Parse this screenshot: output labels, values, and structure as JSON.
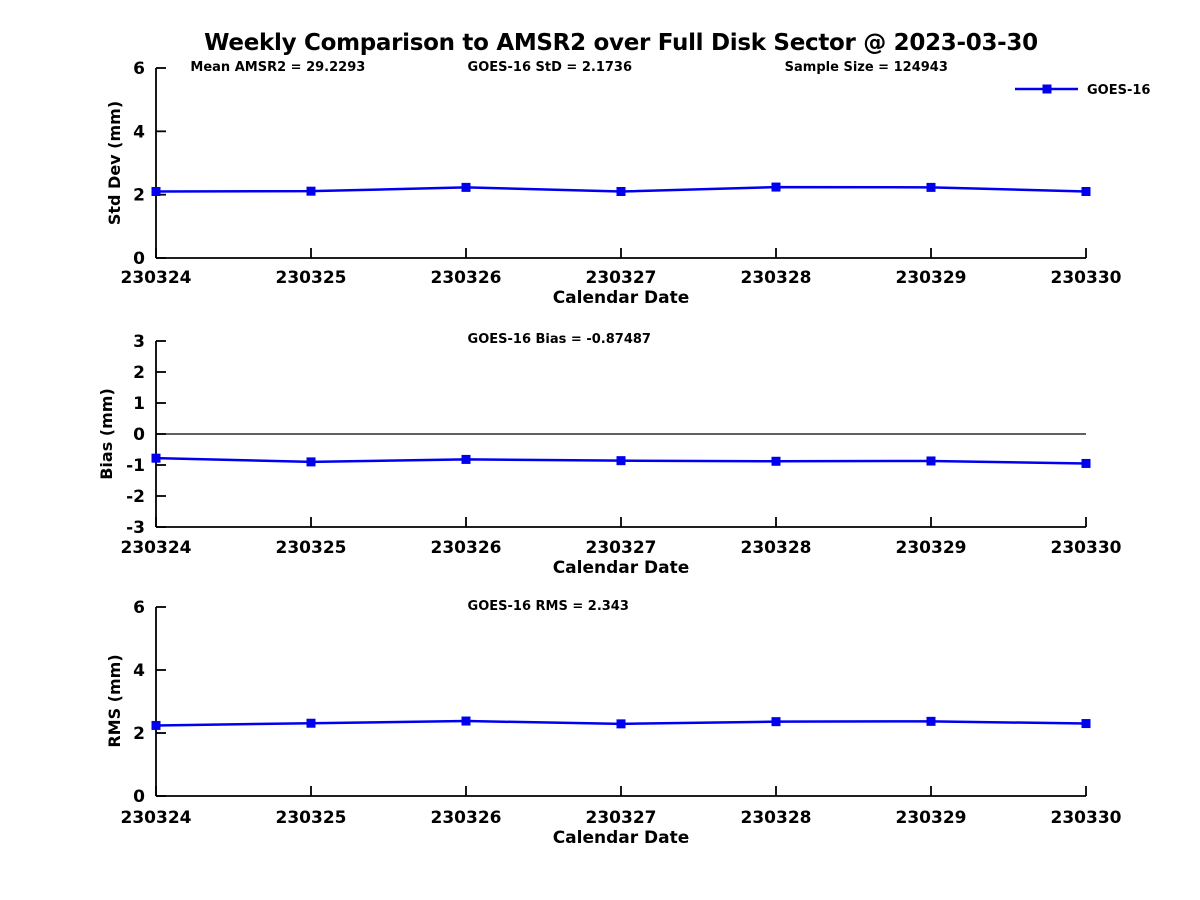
{
  "title": "Weekly Comparison to AMSR2 over Full Disk Sector @ 2023-03-30",
  "legend": {
    "label": "GOES-16"
  },
  "colors": {
    "line": "#0000EE",
    "marker": "#0000EE",
    "axis": "#000000",
    "text": "#000000",
    "background": "#FFFFFF"
  },
  "chart_data": [
    {
      "type": "line",
      "ylabel": "Std Dev (mm)",
      "xlabel": "Calendar Date",
      "ylim": [
        0,
        6
      ],
      "yticks": [
        0,
        2,
        4,
        6
      ],
      "categories": [
        "230324",
        "230325",
        "230326",
        "230327",
        "230328",
        "230329",
        "230330"
      ],
      "series": [
        {
          "name": "GOES-16",
          "values": [
            2.1,
            2.11,
            2.23,
            2.1,
            2.24,
            2.23,
            2.1
          ]
        }
      ],
      "annotations": [
        {
          "text": "Mean AMSR2 = 29.2293",
          "fx": 0.037
        },
        {
          "text": "GOES-16 StD = 2.1736",
          "fx": 0.335
        },
        {
          "text": "Sample Size = 124943",
          "fx": 0.676
        }
      ],
      "zero_line": false,
      "show_legend": true,
      "grid": false,
      "legend_position": "upper-right-outside"
    },
    {
      "type": "line",
      "ylabel": "Bias (mm)",
      "xlabel": "Calendar Date",
      "ylim": [
        -3,
        3
      ],
      "yticks": [
        -3,
        -2,
        -1,
        0,
        1,
        2,
        3
      ],
      "categories": [
        "230324",
        "230325",
        "230326",
        "230327",
        "230328",
        "230329",
        "230330"
      ],
      "series": [
        {
          "name": "GOES-16",
          "values": [
            -0.78,
            -0.9,
            -0.82,
            -0.86,
            -0.88,
            -0.87,
            -0.95
          ]
        }
      ],
      "annotations": [
        {
          "text": "GOES-16 Bias  = -0.87487",
          "fx": 0.335
        }
      ],
      "zero_line": true,
      "show_legend": false,
      "grid": false
    },
    {
      "type": "line",
      "ylabel": "RMS (mm)",
      "xlabel": "Calendar Date",
      "ylim": [
        0,
        6
      ],
      "yticks": [
        0,
        2,
        4,
        6
      ],
      "categories": [
        "230324",
        "230325",
        "230326",
        "230327",
        "230328",
        "230329",
        "230330"
      ],
      "series": [
        {
          "name": "GOES-16",
          "values": [
            2.24,
            2.31,
            2.38,
            2.29,
            2.36,
            2.37,
            2.3
          ]
        }
      ],
      "annotations": [
        {
          "text": "GOES-16 RMS = 2.343",
          "fx": 0.335
        }
      ],
      "zero_line": false,
      "show_legend": false,
      "grid": false
    }
  ]
}
